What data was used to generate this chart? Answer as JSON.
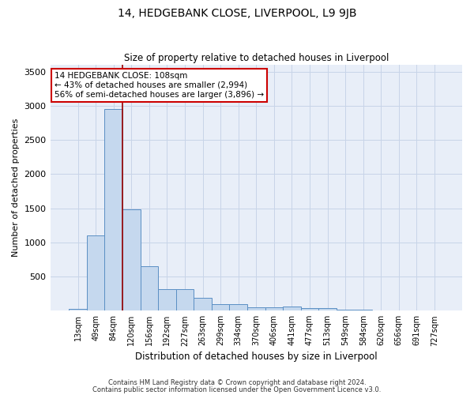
{
  "title": "14, HEDGEBANK CLOSE, LIVERPOOL, L9 9JB",
  "subtitle": "Size of property relative to detached houses in Liverpool",
  "xlabel": "Distribution of detached houses by size in Liverpool",
  "ylabel": "Number of detached properties",
  "categories": [
    "13sqm",
    "49sqm",
    "84sqm",
    "120sqm",
    "156sqm",
    "192sqm",
    "227sqm",
    "263sqm",
    "299sqm",
    "334sqm",
    "370sqm",
    "406sqm",
    "441sqm",
    "477sqm",
    "513sqm",
    "549sqm",
    "584sqm",
    "620sqm",
    "656sqm",
    "691sqm",
    "727sqm"
  ],
  "values": [
    30,
    1100,
    2950,
    1480,
    650,
    310,
    310,
    190,
    100,
    100,
    50,
    50,
    60,
    35,
    35,
    18,
    18,
    8,
    8,
    8,
    3
  ],
  "bar_color": "#c5d8ee",
  "bar_edge_color": "#5b8fc4",
  "grid_color": "#c8d4e8",
  "bg_color": "#e8eef8",
  "red_line_x": 2.5,
  "annotation_text": "14 HEDGEBANK CLOSE: 108sqm\n← 43% of detached houses are smaller (2,994)\n56% of semi-detached houses are larger (3,896) →",
  "annotation_box_color": "#ffffff",
  "annotation_box_edge": "#cc0000",
  "footer1": "Contains HM Land Registry data © Crown copyright and database right 2024.",
  "footer2": "Contains public sector information licensed under the Open Government Licence v3.0.",
  "ylim": [
    0,
    3600
  ],
  "yticks": [
    0,
    500,
    1000,
    1500,
    2000,
    2500,
    3000,
    3500
  ]
}
